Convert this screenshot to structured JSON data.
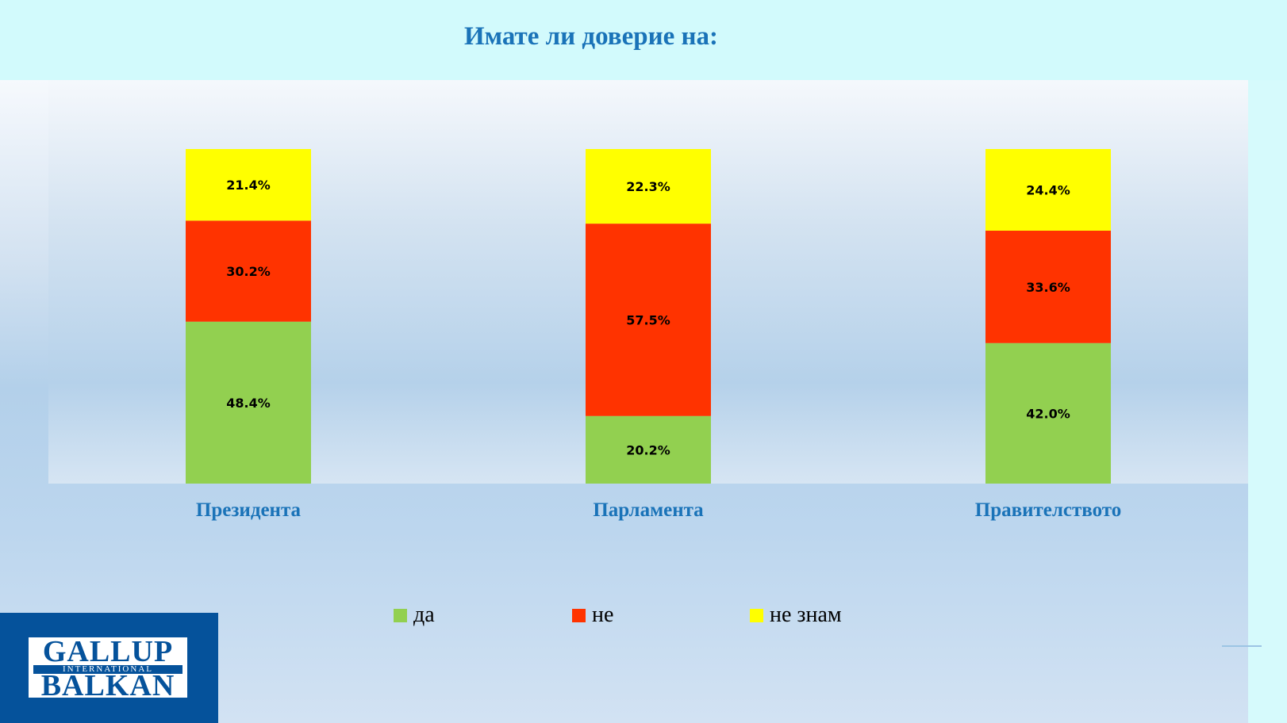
{
  "chart_data": {
    "type": "bar",
    "stacked": true,
    "percent_stacked": true,
    "title": "Имате  ли доверие на:",
    "categories": [
      "Президента",
      "Парламента",
      "Правителството"
    ],
    "series": [
      {
        "name": "да",
        "values": [
          48.4,
          20.2,
          42.0
        ],
        "labels": [
          "48.4%",
          "20.2%",
          "42.0%"
        ],
        "color": "#92d050"
      },
      {
        "name": "не",
        "values": [
          30.2,
          57.5,
          33.6
        ],
        "labels": [
          "30.2%",
          "57.5%",
          "33.6%"
        ],
        "color": "#ff3300"
      },
      {
        "name": "не знам",
        "values": [
          21.4,
          22.3,
          24.4
        ],
        "labels": [
          "21.4%",
          "22.3%",
          "24.4%"
        ],
        "color": "#ffff00"
      }
    ],
    "grid": false,
    "legend": "bottom"
  },
  "logo": {
    "line1": "GALLUP",
    "line2": "INTERNATIONAL",
    "line3": "BALKAN"
  },
  "colors": {
    "title": "#1a73b8",
    "category_label": "#1a73b8",
    "logo_blue": "#05529b"
  }
}
